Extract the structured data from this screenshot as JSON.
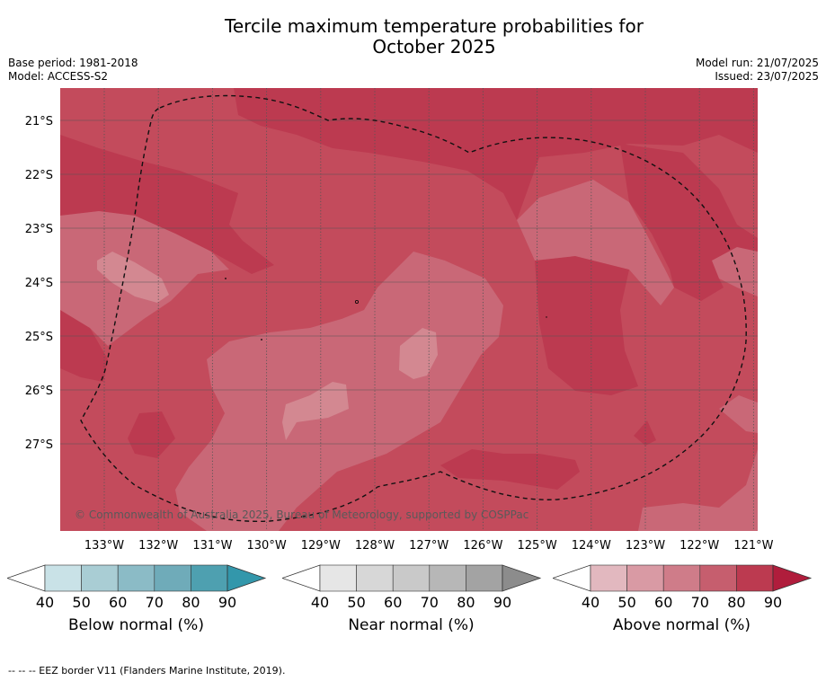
{
  "header": {
    "title_line1": "Tercile maximum temperature probabilities for",
    "title_line2": "October 2025",
    "base_period": "Base period: 1981-2018",
    "model": "Model: ACCESS-S2",
    "model_run": "Model run: 21/07/2025",
    "issued": "Issued: 23/07/2025"
  },
  "map": {
    "lat_labels": [
      "21°S",
      "22°S",
      "23°S",
      "24°S",
      "25°S",
      "26°S",
      "27°S"
    ],
    "lon_labels": [
      "133°W",
      "132°W",
      "131°W",
      "130°W",
      "129°W",
      "128°W",
      "127°W",
      "126°W",
      "125°W",
      "124°W",
      "123°W",
      "122°W",
      "121°W"
    ],
    "copyright": "© Commonwealth of Australia 2025, Bureau of Meteorology, supported by COSPPac"
  },
  "colorbars": [
    {
      "caption": "Below normal (%)",
      "ticks": [
        "40",
        "50",
        "60",
        "70",
        "80",
        "90"
      ],
      "colors": [
        "#ffffff",
        "#c9e2e7",
        "#a9cdd4",
        "#8bbbc6",
        "#6fabb9",
        "#4ea0b0",
        "#3397ab"
      ]
    },
    {
      "caption": "Near normal (%)",
      "ticks": [
        "40",
        "50",
        "60",
        "70",
        "80",
        "90"
      ],
      "colors": [
        "#ffffff",
        "#e6e6e6",
        "#d7d7d7",
        "#c9c9c9",
        "#b7b7b7",
        "#a3a3a3",
        "#8c8c8c"
      ]
    },
    {
      "caption": "Above normal (%)",
      "ticks": [
        "40",
        "50",
        "60",
        "70",
        "80",
        "90"
      ],
      "colors": [
        "#ffffff",
        "#e2b8bf",
        "#d99aa4",
        "#cf7c89",
        "#c65e6e",
        "#bc3a50",
        "#b01d3c"
      ]
    }
  ],
  "footer": {
    "legend_line": "--  --  -- EEZ border V11 (Flanders Marine Institute, 2019)."
  }
}
